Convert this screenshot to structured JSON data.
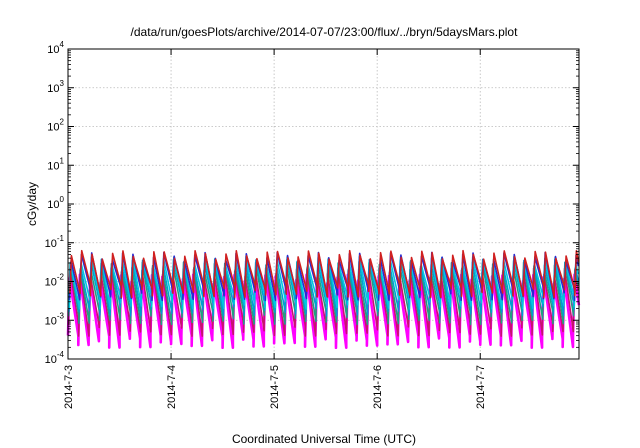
{
  "chart_data": {
    "type": "line",
    "title": "/data/run/goesPlots/archive/2014-07-07/23:00/flux/../bryn/5daysMars.plot",
    "xlabel": "Coordinated Universal Time (UTC)",
    "ylabel": "cGy/day",
    "yscale": "log",
    "ylim": [
      0.0001,
      10000
    ],
    "xlim": [
      "2014-07-03 00:00",
      "2014-07-07 23:00"
    ],
    "x_ticks": [
      "2014-7-3",
      "2014-7-4",
      "2014-7-5",
      "2014-7-6",
      "2014-7-7"
    ],
    "y_ticks": [
      {
        "base": "10",
        "exp": "-4"
      },
      {
        "base": "10",
        "exp": "-3"
      },
      {
        "base": "10",
        "exp": "-2"
      },
      {
        "base": "10",
        "exp": "-1"
      },
      {
        "base": "10",
        "exp": "0"
      },
      {
        "base": "10",
        "exp": "1"
      },
      {
        "base": "10",
        "exp": "2"
      },
      {
        "base": "10",
        "exp": "3"
      },
      {
        "base": "10",
        "exp": "4"
      }
    ],
    "grid": true,
    "legend": "none",
    "cycles_per_day": 10,
    "series": [
      {
        "color": "#ff00ff",
        "peak": 0.012,
        "trough": 0.0003
      },
      {
        "color": "#c8126e",
        "peak": 0.018,
        "trough": 0.0006
      },
      {
        "color": "#20a080",
        "peak": 0.025,
        "trough": 0.0012
      },
      {
        "color": "#009fd0",
        "peak": 0.03,
        "trough": 0.002
      },
      {
        "color": "#00c8e0",
        "peak": 0.035,
        "trough": 0.003
      },
      {
        "color": "#2a2ad0",
        "peak": 0.045,
        "trough": 0.005
      },
      {
        "color": "#d02020",
        "peak": 0.05,
        "trough": 0.006
      }
    ]
  }
}
